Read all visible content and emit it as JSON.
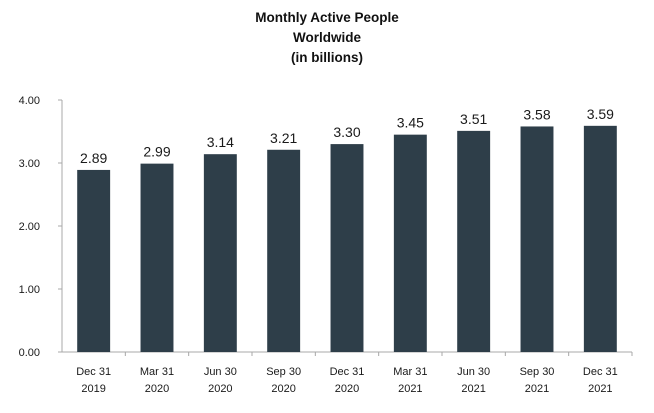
{
  "chart_data": {
    "type": "bar",
    "title_lines": [
      "Monthly Active People",
      "Worldwide",
      "(in billions)"
    ],
    "xlabel": "",
    "ylabel": "",
    "categories": [
      [
        "Dec 31",
        "2019"
      ],
      [
        "Mar 31",
        "2020"
      ],
      [
        "Jun 30",
        "2020"
      ],
      [
        "Sep 30",
        "2020"
      ],
      [
        "Dec 31",
        "2020"
      ],
      [
        "Mar 31",
        "2021"
      ],
      [
        "Jun 30",
        "2021"
      ],
      [
        "Sep 30",
        "2021"
      ],
      [
        "Dec 31",
        "2021"
      ]
    ],
    "values": [
      2.89,
      2.99,
      3.14,
      3.21,
      3.3,
      3.45,
      3.51,
      3.58,
      3.59
    ],
    "value_labels": [
      "2.89",
      "2.99",
      "3.14",
      "3.21",
      "3.30",
      "3.45",
      "3.51",
      "3.58",
      "3.59"
    ],
    "ylim": [
      0,
      4
    ],
    "yticks": [
      0,
      1,
      2,
      3,
      4
    ],
    "ytick_labels": [
      "0.00",
      "1.00",
      "2.00",
      "3.00",
      "4.00"
    ],
    "grid": false,
    "legend": "none",
    "bar_color": "#2e3e49",
    "axis_color": "#a8a8a8"
  }
}
